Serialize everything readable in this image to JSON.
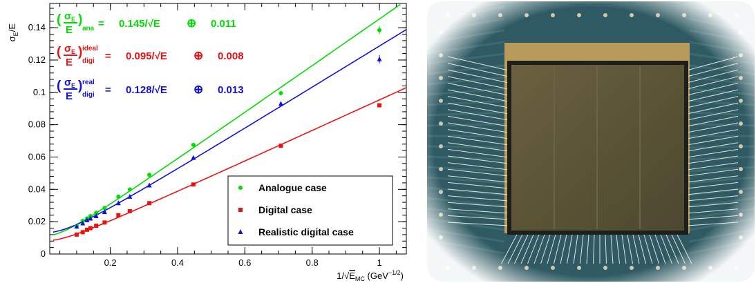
{
  "chart_data": {
    "type": "scatter",
    "xlabel": "1/√E_MC (GeV^-1/2)",
    "ylabel": "σ_E/E",
    "xlim": [
      0.02,
      1.08
    ],
    "ylim": [
      0.0,
      0.155
    ],
    "xticks": [
      0.2,
      0.4,
      0.6,
      0.8,
      1
    ],
    "yticks": [
      0.02,
      0.04,
      0.06,
      0.08,
      0.1,
      0.12,
      0.14
    ],
    "x_tick_labels": [
      "0.2",
      "0.4",
      "0.6",
      "0.8",
      "1"
    ],
    "y_tick_labels": [
      "0.02",
      "0.04",
      "0.06",
      "0.08",
      "0.1",
      "0.12",
      "0.14"
    ],
    "xlabel_text": {
      "prefix": "1/",
      "sqrt": "√",
      "var": "E",
      "sub": "MC",
      "unit": " (GeV",
      "exp": "−1/2",
      "close": ")"
    },
    "ylabel_text": {
      "sigma": "σ",
      "sub": "E",
      "rest": "/E"
    },
    "legend_position": "bottom-right",
    "series": [
      {
        "name": "Analogue case",
        "color": "#00dd00",
        "marker": "circle",
        "x": [
          0.1,
          0.118,
          0.131,
          0.141,
          0.158,
          0.183,
          0.224,
          0.258,
          0.316,
          0.447,
          0.707,
          1.0
        ],
        "y": [
          0.0175,
          0.0205,
          0.022,
          0.0235,
          0.0255,
          0.0285,
          0.0355,
          0.04,
          0.049,
          0.0675,
          0.0995,
          0.1385
        ],
        "fit": {
          "a": 0.145,
          "b": 0.011
        },
        "equation": {
          "open": "(",
          "sigma": "σ",
          "sub_e": "E",
          "denom": "E",
          "close": ")",
          "sub": "ana",
          "sup": "",
          "eq": "=",
          "a": "0.145",
          "sqrt": "/√E",
          "oplus": "⊕",
          "b": "0.011"
        }
      },
      {
        "name": "Digital case",
        "color": "#ee1111",
        "marker": "square",
        "x": [
          0.1,
          0.118,
          0.131,
          0.141,
          0.158,
          0.183,
          0.224,
          0.258,
          0.316,
          0.447,
          0.707,
          1.0
        ],
        "y": [
          0.012,
          0.0135,
          0.015,
          0.016,
          0.0175,
          0.0195,
          0.024,
          0.0265,
          0.0315,
          0.043,
          0.067,
          0.092
        ],
        "fit": {
          "a": 0.095,
          "b": 0.008
        },
        "equation": {
          "open": "(",
          "sigma": "σ",
          "sub_e": "E",
          "denom": "E",
          "close": ")",
          "sub": "digi",
          "sup": "ideal",
          "eq": "=",
          "a": "0.095",
          "sqrt": "/√E",
          "oplus": "⊕",
          "b": "0.008"
        }
      },
      {
        "name": "Realistic digital case",
        "color": "#1111dd",
        "marker": "triangle",
        "x": [
          0.1,
          0.118,
          0.131,
          0.141,
          0.158,
          0.183,
          0.224,
          0.258,
          0.316,
          0.447,
          0.707,
          1.0
        ],
        "y": [
          0.017,
          0.019,
          0.021,
          0.022,
          0.0235,
          0.026,
          0.0315,
          0.0355,
          0.0425,
          0.0595,
          0.093,
          0.1205
        ],
        "fit": {
          "a": 0.128,
          "b": 0.013
        },
        "equation": {
          "open": "(",
          "sigma": "σ",
          "sub_e": "E",
          "denom": "E",
          "close": ")",
          "sub": "digi",
          "sup": "real",
          "eq": "=",
          "a": "0.128",
          "sqrt": "/√E",
          "oplus": "⊕",
          "b": "0.013"
        }
      }
    ]
  },
  "photo": {
    "description_icon": "sensor-chip-photo",
    "colors": {
      "board": "#2f5a63",
      "die": "#5e5636",
      "frame": "#1e1e1a",
      "gold": "#b89a5c",
      "wire": "#e4e2d8",
      "pad": "#cfc8ae"
    }
  }
}
